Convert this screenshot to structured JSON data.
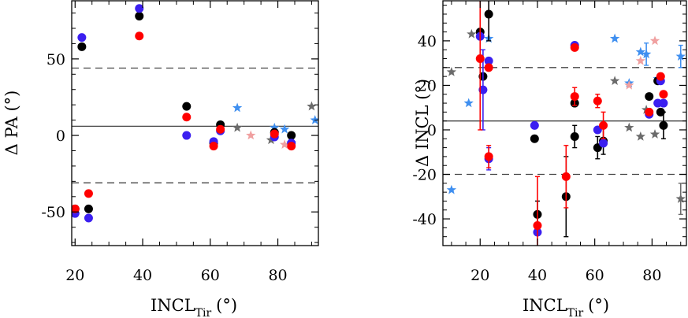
{
  "colors": {
    "black": "#000000",
    "red": "#ff0000",
    "blue": "#3b1ff0",
    "lightblue": "#3f8ff0",
    "grey": "#6b6b6b",
    "pink": "#f0a0a0"
  },
  "chart_data": [
    {
      "type": "scatter",
      "id": "pa",
      "title": "",
      "xlabel": "INCL",
      "xlabel_sub": "Tir",
      "xlabel_unit": "(°)",
      "ylabel": "Δ PA (°)",
      "xlim": [
        19,
        92
      ],
      "ylim": [
        -72,
        88
      ],
      "xticks": [
        20,
        40,
        60,
        80
      ],
      "yticks": [
        -50,
        0,
        50
      ],
      "hlines": [
        {
          "y": 6,
          "style": "solid"
        },
        {
          "y": 44,
          "style": "dashed"
        },
        {
          "y": -31,
          "style": "dashed"
        }
      ],
      "series": [
        {
          "name": "black",
          "marker": "circle",
          "color": "black",
          "points": [
            [
              20,
              -48
            ],
            [
              22,
              58
            ],
            [
              24,
              -48
            ],
            [
              39,
              78
            ],
            [
              53,
              19
            ],
            [
              61,
              -5
            ],
            [
              63,
              7
            ],
            [
              79,
              2
            ],
            [
              84,
              0
            ]
          ]
        },
        {
          "name": "blue",
          "marker": "circle",
          "color": "blue",
          "points": [
            [
              20,
              -51
            ],
            [
              22,
              64
            ],
            [
              24,
              -54
            ],
            [
              39,
              83
            ],
            [
              53,
              0
            ],
            [
              61,
              -4
            ],
            [
              63,
              3
            ],
            [
              79,
              -1
            ],
            [
              84,
              -5
            ]
          ]
        },
        {
          "name": "red",
          "marker": "circle",
          "color": "red",
          "points": [
            [
              20,
              -48
            ],
            [
              24,
              -38
            ],
            [
              39,
              65
            ],
            [
              53,
              12
            ],
            [
              61,
              -7
            ],
            [
              63,
              4
            ],
            [
              79,
              1
            ],
            [
              84,
              -7
            ]
          ]
        },
        {
          "name": "lightblue-stars",
          "marker": "star",
          "color": "lightblue",
          "points": [
            [
              68,
              18
            ],
            [
              79,
              5
            ],
            [
              82,
              4
            ],
            [
              91,
              10
            ]
          ]
        },
        {
          "name": "grey-stars",
          "marker": "star",
          "color": "grey",
          "points": [
            [
              68,
              5
            ],
            [
              78,
              -3
            ],
            [
              84,
              -5
            ],
            [
              90,
              19
            ]
          ]
        },
        {
          "name": "pink-stars",
          "marker": "star",
          "color": "pink",
          "points": [
            [
              72,
              0
            ],
            [
              82,
              -6
            ]
          ]
        }
      ]
    },
    {
      "type": "scatter",
      "id": "incl",
      "title": "",
      "xlabel": "INCL",
      "xlabel_sub": "Tir",
      "xlabel_unit": "(°)",
      "ylabel": "Δ INCL (°)",
      "xlim": [
        7,
        92
      ],
      "ylim": [
        -52,
        58
      ],
      "xticks": [
        20,
        40,
        60,
        80
      ],
      "yticks": [
        -40,
        -20,
        0,
        20,
        40
      ],
      "hlines": [
        {
          "y": 4,
          "style": "solid"
        },
        {
          "y": 28,
          "style": "dashed"
        },
        {
          "y": -20,
          "style": "dashed"
        }
      ],
      "series": [
        {
          "name": "black",
          "marker": "circle",
          "color": "black",
          "points": [
            [
              20,
              44,
              0
            ],
            [
              21,
              24,
              0
            ],
            [
              23,
              52,
              12
            ],
            [
              39,
              -4,
              0
            ],
            [
              40,
              -38,
              6
            ],
            [
              50,
              -30,
              18
            ],
            [
              53,
              12,
              0
            ],
            [
              53,
              -3,
              5
            ],
            [
              61,
              -8,
              5
            ],
            [
              63,
              -5,
              6
            ],
            [
              79,
              15,
              0
            ],
            [
              82,
              22,
              0
            ],
            [
              83,
              8,
              0
            ],
            [
              84,
              2,
              6
            ]
          ]
        },
        {
          "name": "blue",
          "marker": "circle",
          "color": "blue",
          "points": [
            [
              20,
              42,
              0
            ],
            [
              21,
              18,
              18
            ],
            [
              23,
              31,
              0
            ],
            [
              23,
              -13,
              5
            ],
            [
              39,
              2,
              0
            ],
            [
              40,
              -46,
              0
            ],
            [
              53,
              38,
              0
            ],
            [
              61,
              0,
              0
            ],
            [
              63,
              -6,
              0
            ],
            [
              79,
              7,
              0
            ],
            [
              82,
              12,
              0
            ],
            [
              83,
              22,
              0
            ],
            [
              84,
              12,
              0
            ]
          ]
        },
        {
          "name": "red",
          "marker": "circle",
          "color": "red",
          "points": [
            [
              20,
              32,
              32
            ],
            [
              23,
              28,
              0
            ],
            [
              23,
              -12,
              5
            ],
            [
              40,
              -43,
              22
            ],
            [
              50,
              -21,
              14
            ],
            [
              53,
              15,
              4
            ],
            [
              53,
              37,
              0
            ],
            [
              61,
              13,
              3
            ],
            [
              63,
              2,
              6
            ],
            [
              79,
              8,
              0
            ],
            [
              83,
              24,
              0
            ],
            [
              84,
              16,
              0
            ]
          ]
        },
        {
          "name": "lightblue-stars",
          "marker": "star",
          "color": "lightblue",
          "points": [
            [
              10,
              -27,
              0
            ],
            [
              16,
              12,
              0
            ],
            [
              23,
              41,
              0
            ],
            [
              67,
              41,
              0
            ],
            [
              72,
              21,
              0
            ],
            [
              76,
              35,
              0
            ],
            [
              78,
              34,
              5
            ],
            [
              82,
              23,
              0
            ],
            [
              90,
              33,
              5
            ]
          ]
        },
        {
          "name": "grey-stars",
          "marker": "star",
          "color": "grey",
          "points": [
            [
              10,
              26,
              0
            ],
            [
              17,
              43,
              0
            ],
            [
              67,
              22,
              0
            ],
            [
              72,
              1,
              0
            ],
            [
              76,
              -3,
              0
            ],
            [
              78,
              9,
              0
            ],
            [
              81,
              -2,
              0
            ],
            [
              90,
              -31,
              7
            ]
          ]
        },
        {
          "name": "pink-stars",
          "marker": "star",
          "color": "pink",
          "points": [
            [
              72,
              20,
              0
            ],
            [
              76,
              31,
              0
            ],
            [
              81,
              40,
              0
            ]
          ]
        }
      ]
    }
  ]
}
